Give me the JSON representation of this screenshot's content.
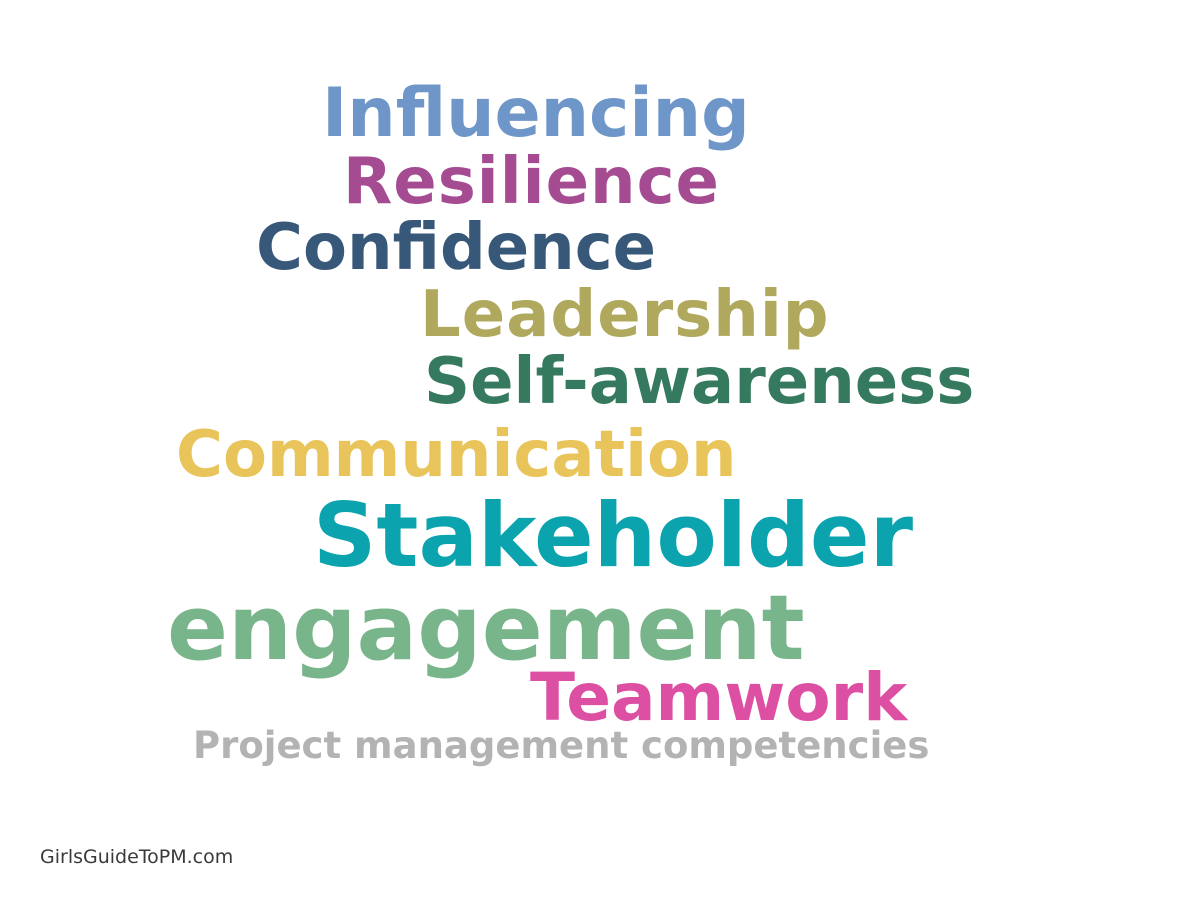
{
  "words": [
    {
      "text": "Influencing",
      "color": "#6f96c9"
    },
    {
      "text": "Resilience",
      "color": "#a44b92"
    },
    {
      "text": "Confidence",
      "color": "#38587a"
    },
    {
      "text": "Leadership",
      "color": "#b0a85c"
    },
    {
      "text": "Self-awareness",
      "color": "#357a5e"
    },
    {
      "text": "Communication",
      "color": "#e8c45a"
    },
    {
      "text": "Stakeholder",
      "color": "#0aa3ae"
    },
    {
      "text": "engagement",
      "color": "#79b58a"
    },
    {
      "text": "Teamwork",
      "color": "#dd4fa3"
    }
  ],
  "title": {
    "text": "Project management competencies",
    "color": "#b3b3b3"
  },
  "footer": {
    "text": "GirlsGuideToPM.com",
    "color": "#3a3a3a"
  }
}
